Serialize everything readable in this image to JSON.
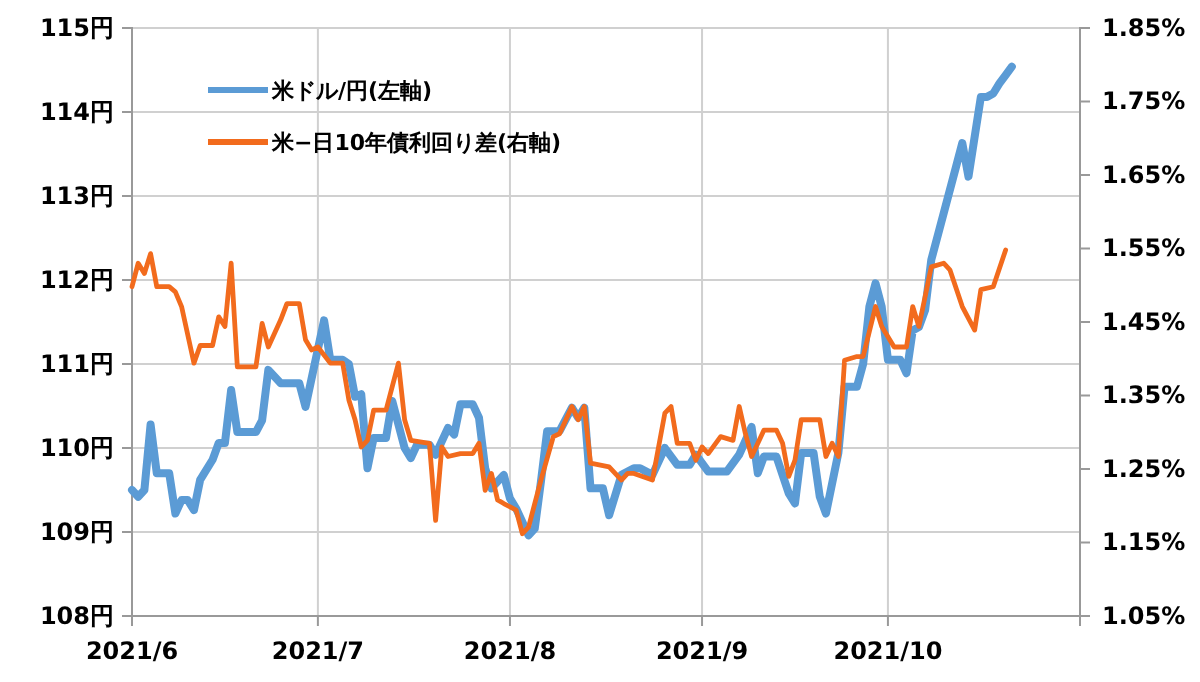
{
  "chart_data": {
    "type": "line",
    "xlim": [
      "2021-06-01",
      "2021-11-01"
    ],
    "xticks": [
      {
        "value": "2021-06-01",
        "label": "2021/6"
      },
      {
        "value": "2021-07-01",
        "label": "2021/7"
      },
      {
        "value": "2021-08-01",
        "label": "2021/8"
      },
      {
        "value": "2021-09-01",
        "label": "2021/9"
      },
      {
        "value": "2021-10-01",
        "label": "2021/10"
      }
    ],
    "ylim": [
      108,
      115
    ],
    "yticks": [
      {
        "value": 108,
        "label": "108円"
      },
      {
        "value": 109,
        "label": "109円"
      },
      {
        "value": 110,
        "label": "110円"
      },
      {
        "value": 111,
        "label": "111円"
      },
      {
        "value": 112,
        "label": "112円"
      },
      {
        "value": 113,
        "label": "113円"
      },
      {
        "value": 114,
        "label": "114円"
      },
      {
        "value": 115,
        "label": "115円"
      }
    ],
    "y2lim": [
      1.05,
      1.85
    ],
    "y2ticks": [
      {
        "value": 1.05,
        "label": "1.05%"
      },
      {
        "value": 1.15,
        "label": "1.15%"
      },
      {
        "value": 1.25,
        "label": "1.25%"
      },
      {
        "value": 1.35,
        "label": "1.35%"
      },
      {
        "value": 1.45,
        "label": "1.45%"
      },
      {
        "value": 1.55,
        "label": "1.55%"
      },
      {
        "value": 1.65,
        "label": "1.65%"
      },
      {
        "value": 1.75,
        "label": "1.75%"
      },
      {
        "value": 1.85,
        "label": "1.85%"
      }
    ],
    "grid": true,
    "legend": "top left",
    "series": [
      {
        "name": "米ドル/円(左軸)",
        "color": "#5b9bd5",
        "x": [
          "2021-06-01",
          "2021-06-02",
          "2021-06-03",
          "2021-06-04",
          "2021-06-05",
          "2021-06-07",
          "2021-06-08",
          "2021-06-09",
          "2021-06-10",
          "2021-06-11",
          "2021-06-12",
          "2021-06-14",
          "2021-06-15",
          "2021-06-16",
          "2021-06-17",
          "2021-06-18",
          "2021-06-21",
          "2021-06-22",
          "2021-06-23",
          "2021-06-25",
          "2021-06-28",
          "2021-06-29",
          "2021-07-02",
          "2021-07-03",
          "2021-07-05",
          "2021-07-06",
          "2021-07-07",
          "2021-07-08",
          "2021-07-09",
          "2021-07-10",
          "2021-07-12",
          "2021-07-13",
          "2021-07-15",
          "2021-07-16",
          "2021-07-17",
          "2021-07-19",
          "2021-07-20",
          "2021-07-22",
          "2021-07-23",
          "2021-07-24",
          "2021-07-26",
          "2021-07-27",
          "2021-07-28",
          "2021-07-29",
          "2021-07-31",
          "2021-08-01",
          "2021-08-02",
          "2021-08-04",
          "2021-08-05",
          "2021-08-06",
          "2021-08-07",
          "2021-08-09",
          "2021-08-11",
          "2021-08-12",
          "2021-08-13",
          "2021-08-14",
          "2021-08-16",
          "2021-08-17",
          "2021-08-19",
          "2021-08-21",
          "2021-08-22",
          "2021-08-24",
          "2021-08-26",
          "2021-08-28",
          "2021-08-30",
          "2021-08-31",
          "2021-09-02",
          "2021-09-05",
          "2021-09-07",
          "2021-09-09",
          "2021-09-10",
          "2021-09-11",
          "2021-09-13",
          "2021-09-15",
          "2021-09-16",
          "2021-09-17",
          "2021-09-19",
          "2021-09-20",
          "2021-09-21",
          "2021-09-23",
          "2021-09-24",
          "2021-09-26",
          "2021-09-27",
          "2021-09-28",
          "2021-09-29",
          "2021-09-30",
          "2021-10-01",
          "2021-10-03",
          "2021-10-04",
          "2021-10-05",
          "2021-10-06",
          "2021-10-07",
          "2021-10-08",
          "2021-10-12",
          "2021-10-13",
          "2021-10-14",
          "2021-10-16",
          "2021-10-17",
          "2021-10-18",
          "2021-10-19",
          "2021-10-20",
          "2021-10-21"
        ],
        "values": [
          109.5,
          109.42,
          109.5,
          110.28,
          109.7,
          109.7,
          109.22,
          109.38,
          109.38,
          109.26,
          109.62,
          109.86,
          110.06,
          110.06,
          110.69,
          110.19,
          110.19,
          110.33,
          110.93,
          110.77,
          110.77,
          110.49,
          111.52,
          111.05,
          111.05,
          111.0,
          110.61,
          110.64,
          109.76,
          110.12,
          110.12,
          110.56,
          110.0,
          109.88,
          110.04,
          110.04,
          109.92,
          110.24,
          110.16,
          110.52,
          110.52,
          110.36,
          109.76,
          109.52,
          109.68,
          109.4,
          109.28,
          108.96,
          109.04,
          109.6,
          110.2,
          110.2,
          110.48,
          110.36,
          110.48,
          109.52,
          109.52,
          109.2,
          109.68,
          109.76,
          109.76,
          109.68,
          110.0,
          109.8,
          109.8,
          109.92,
          109.72,
          109.72,
          109.92,
          110.25,
          109.7,
          109.9,
          109.9,
          109.46,
          109.34,
          109.94,
          109.94,
          109.42,
          109.22,
          109.94,
          110.73,
          110.73,
          111.0,
          111.68,
          111.96,
          111.68,
          111.05,
          111.05,
          110.89,
          111.4,
          111.44,
          111.64,
          112.24,
          113.35,
          113.63,
          113.23,
          114.18,
          114.18,
          114.22,
          114.34,
          114.44,
          114.54
        ]
      },
      {
        "name": "米−日10年債利回り差(右軸)",
        "color": "#f26b1d",
        "axis": "y2",
        "x": [
          "2021-06-01",
          "2021-06-02",
          "2021-06-03",
          "2021-06-04",
          "2021-06-05",
          "2021-06-07",
          "2021-06-08",
          "2021-06-09",
          "2021-06-11",
          "2021-06-12",
          "2021-06-14",
          "2021-06-15",
          "2021-06-16",
          "2021-06-17",
          "2021-06-18",
          "2021-06-21",
          "2021-06-22",
          "2021-06-23",
          "2021-06-25",
          "2021-06-26",
          "2021-06-28",
          "2021-06-29",
          "2021-06-30",
          "2021-07-01",
          "2021-07-03",
          "2021-07-05",
          "2021-07-06",
          "2021-07-07",
          "2021-07-08",
          "2021-07-09",
          "2021-07-10",
          "2021-07-12",
          "2021-07-14",
          "2021-07-15",
          "2021-07-16",
          "2021-07-19",
          "2021-07-20",
          "2021-07-21",
          "2021-07-22",
          "2021-07-24",
          "2021-07-26",
          "2021-07-27",
          "2021-07-28",
          "2021-07-29",
          "2021-07-30",
          "2021-07-31",
          "2021-08-02",
          "2021-08-03",
          "2021-08-04",
          "2021-08-06",
          "2021-08-08",
          "2021-08-09",
          "2021-08-11",
          "2021-08-12",
          "2021-08-13",
          "2021-08-14",
          "2021-08-17",
          "2021-08-19",
          "2021-08-20",
          "2021-08-21",
          "2021-08-24",
          "2021-08-26",
          "2021-08-27",
          "2021-08-28",
          "2021-08-30",
          "2021-08-31",
          "2021-09-01",
          "2021-09-02",
          "2021-09-04",
          "2021-09-06",
          "2021-09-07",
          "2021-09-08",
          "2021-09-09",
          "2021-09-11",
          "2021-09-13",
          "2021-09-14",
          "2021-09-15",
          "2021-09-16",
          "2021-09-17",
          "2021-09-20",
          "2021-09-21",
          "2021-09-22",
          "2021-09-23",
          "2021-09-24",
          "2021-09-26",
          "2021-09-27",
          "2021-09-29",
          "2021-09-30",
          "2021-10-02",
          "2021-10-04",
          "2021-10-05",
          "2021-10-06",
          "2021-10-08",
          "2021-10-10",
          "2021-10-11",
          "2021-10-13",
          "2021-10-15",
          "2021-10-16",
          "2021-10-18",
          "2021-10-20"
        ],
        "values": [
          1.498,
          1.53,
          1.516,
          1.543,
          1.498,
          1.498,
          1.491,
          1.471,
          1.394,
          1.418,
          1.418,
          1.457,
          1.444,
          1.53,
          1.389,
          1.389,
          1.448,
          1.416,
          1.453,
          1.475,
          1.475,
          1.426,
          1.412,
          1.416,
          1.394,
          1.394,
          1.344,
          1.317,
          1.28,
          1.289,
          1.33,
          1.33,
          1.394,
          1.317,
          1.289,
          1.285,
          1.18,
          1.28,
          1.267,
          1.271,
          1.271,
          1.285,
          1.221,
          1.244,
          1.208,
          1.203,
          1.194,
          1.162,
          1.171,
          1.235,
          1.294,
          1.298,
          1.335,
          1.317,
          1.335,
          1.258,
          1.253,
          1.235,
          1.244,
          1.244,
          1.235,
          1.326,
          1.335,
          1.285,
          1.285,
          1.262,
          1.28,
          1.271,
          1.294,
          1.289,
          1.335,
          1.298,
          1.267,
          1.303,
          1.303,
          1.285,
          1.24,
          1.262,
          1.317,
          1.317,
          1.267,
          1.285,
          1.267,
          1.398,
          1.403,
          1.403,
          1.471,
          1.444,
          1.416,
          1.416,
          1.471,
          1.444,
          1.525,
          1.53,
          1.521,
          1.471,
          1.439,
          1.494,
          1.498,
          1.548
        ]
      }
    ]
  }
}
